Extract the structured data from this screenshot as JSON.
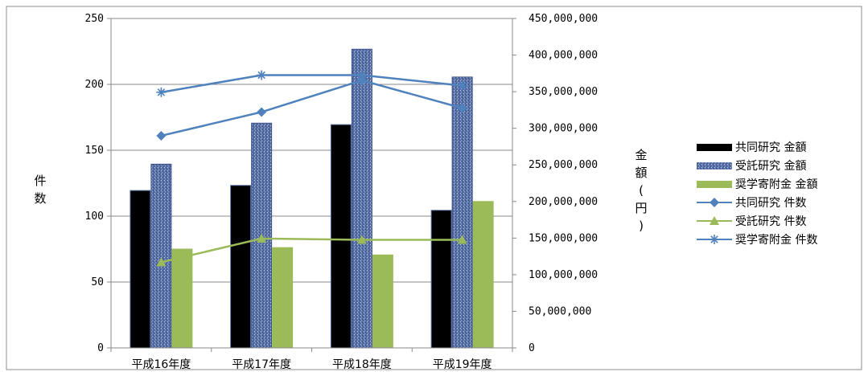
{
  "chart_data": {
    "type": "bar",
    "categories": [
      "平成16年度",
      "平成17年度",
      "平成18年度",
      "平成19年度"
    ],
    "left_axis": {
      "label": "件数",
      "ylim": [
        0,
        250
      ],
      "ticks": [
        0,
        50,
        100,
        150,
        200,
        250
      ],
      "tick_labels": [
        "0",
        "50",
        "100",
        "150",
        "200",
        "250"
      ]
    },
    "right_axis": {
      "label": "金額(円)",
      "ylim": [
        0,
        450000000
      ],
      "ticks": [
        0,
        50000000,
        100000000,
        150000000,
        200000000,
        250000000,
        300000000,
        350000000,
        400000000,
        450000000
      ],
      "tick_labels": [
        "0",
        "50,000,000",
        "100,000,000",
        "150,000,000",
        "200,000,000",
        "250,000,000",
        "300,000,000",
        "350,000,000",
        "400,000,000",
        "450,000,000"
      ]
    },
    "grid": true,
    "legend_position": "right",
    "bar_series": [
      {
        "name": "共同研究 金額",
        "axis": "right",
        "color": "#000000",
        "values": [
          215000000,
          222000000,
          305000000,
          188000000
        ]
      },
      {
        "name": "受託研究 金額",
        "axis": "right",
        "color": "#5a72a8",
        "values": [
          251000000,
          307000000,
          408000000,
          370000000
        ]
      },
      {
        "name": "奨学寄附金 金額",
        "axis": "right",
        "color": "#9bbb59",
        "values": [
          135000000,
          137000000,
          127000000,
          200000000
        ]
      }
    ],
    "line_series": [
      {
        "name": "共同研究 件数",
        "axis": "left",
        "color": "#4f81bd",
        "marker": "diamond",
        "values": [
          161,
          179,
          203,
          182
        ]
      },
      {
        "name": "受託研究 件数",
        "axis": "left",
        "color": "#9bbb59",
        "marker": "triangle",
        "values": [
          65,
          83,
          82,
          82
        ]
      },
      {
        "name": "奨学寄附金 件数",
        "axis": "left",
        "color": "#4f81bd",
        "marker": "asterisk",
        "values": [
          194,
          207,
          207,
          199
        ]
      }
    ]
  }
}
